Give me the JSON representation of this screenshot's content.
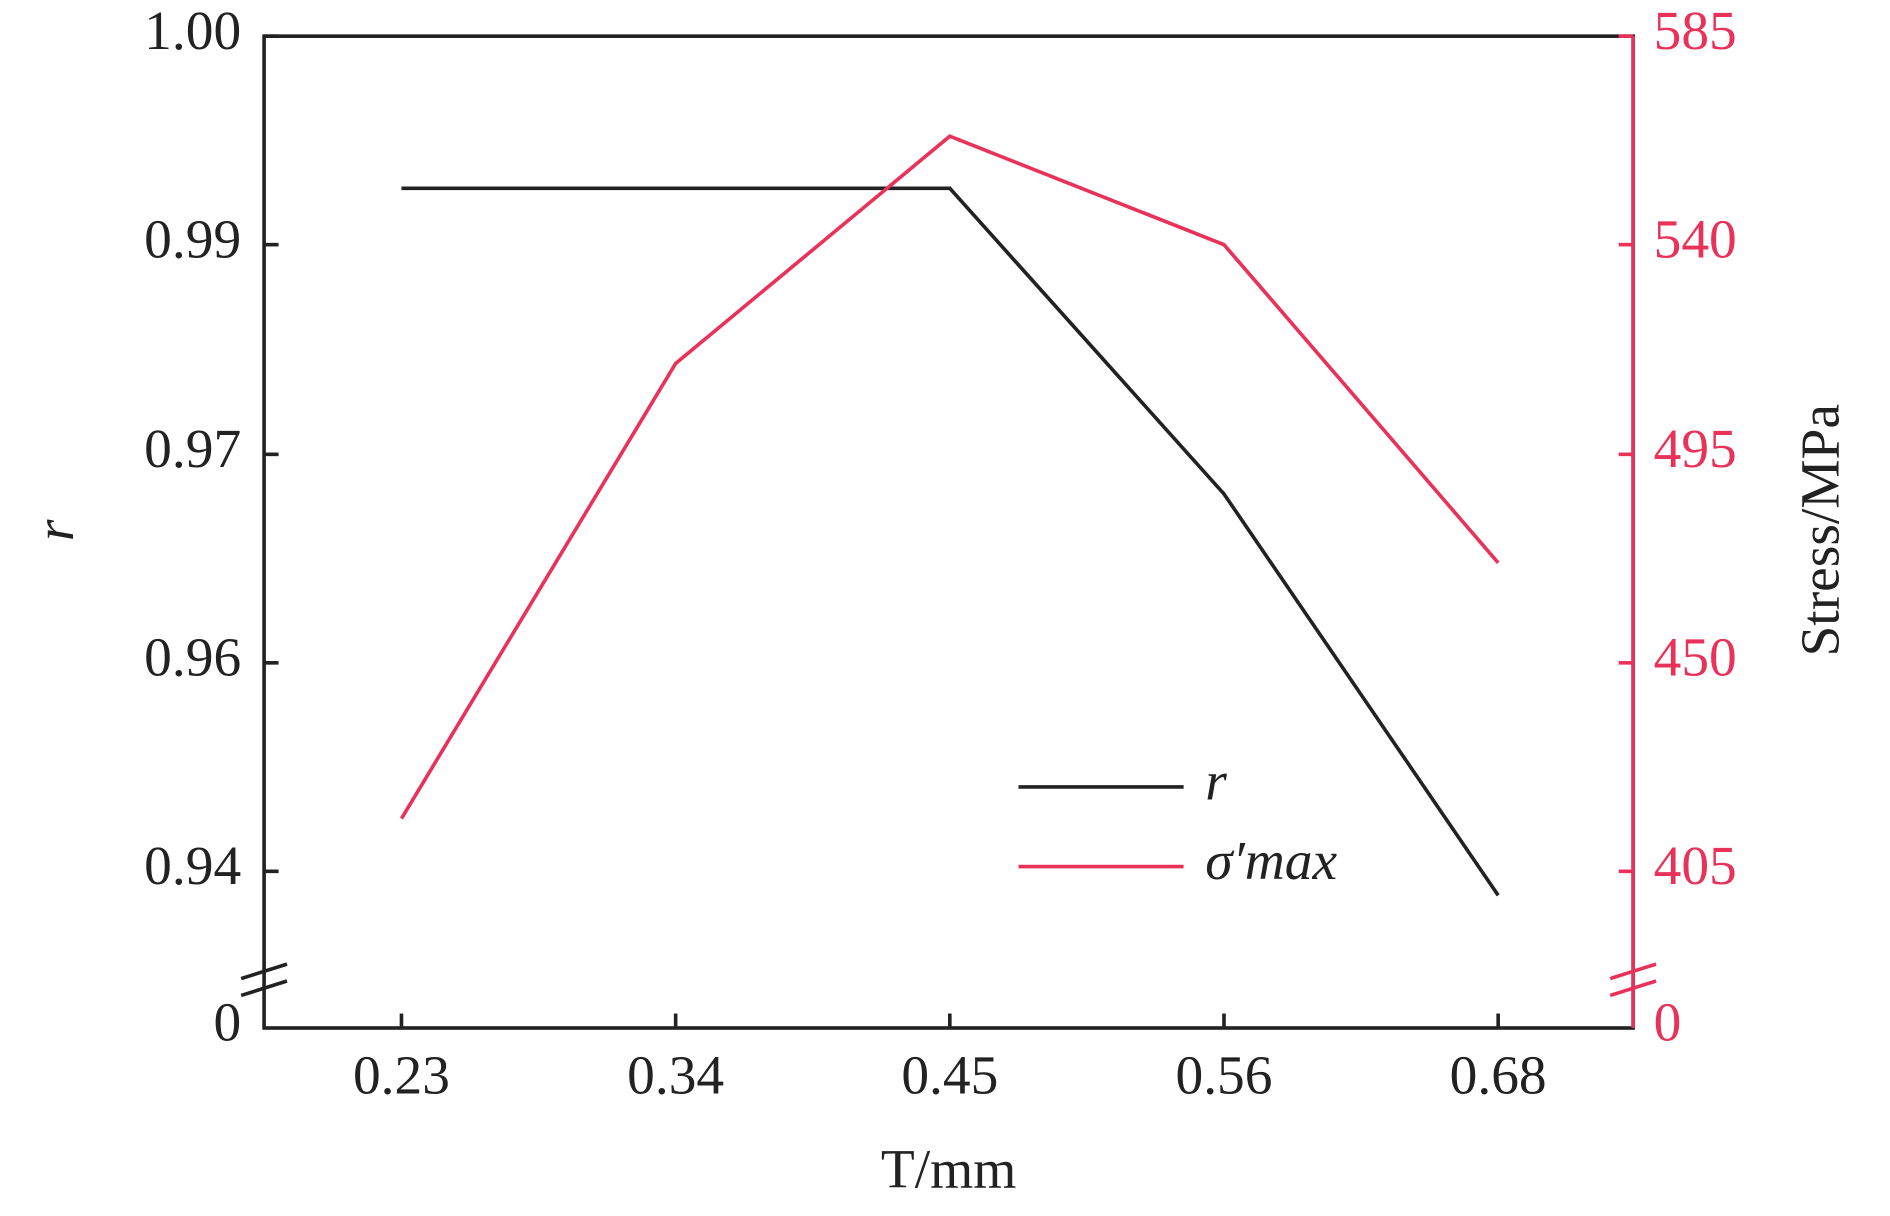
{
  "chart_data": {
    "type": "line",
    "xlabel": "T/mm",
    "ylabel": "r",
    "y2label": "Stress/MPa",
    "categories": [
      "0.23",
      "0.34",
      "0.45",
      "0.56",
      "0.68"
    ],
    "ylim": [
      0,
      1
    ],
    "yticks": [
      0,
      0.94,
      0.96,
      0.97,
      0.99,
      {
        "value": 1,
        "label": "1.00"
      }
    ],
    "y2lim": [
      0,
      585
    ],
    "y2ticks": [
      0,
      405,
      450,
      495,
      540,
      585
    ],
    "series": [
      {
        "name": "r",
        "color": "#222222",
        "values": [
          0.9927,
          0.9927,
          0.9927,
          0.9681,
          0.9377
        ]
      },
      {
        "name": "σ′max",
        "color": "#e8325a",
        "axis": "y2",
        "values": [
          416.4,
          514.5,
          563.4,
          540,
          471.6
        ]
      }
    ]
  }
}
